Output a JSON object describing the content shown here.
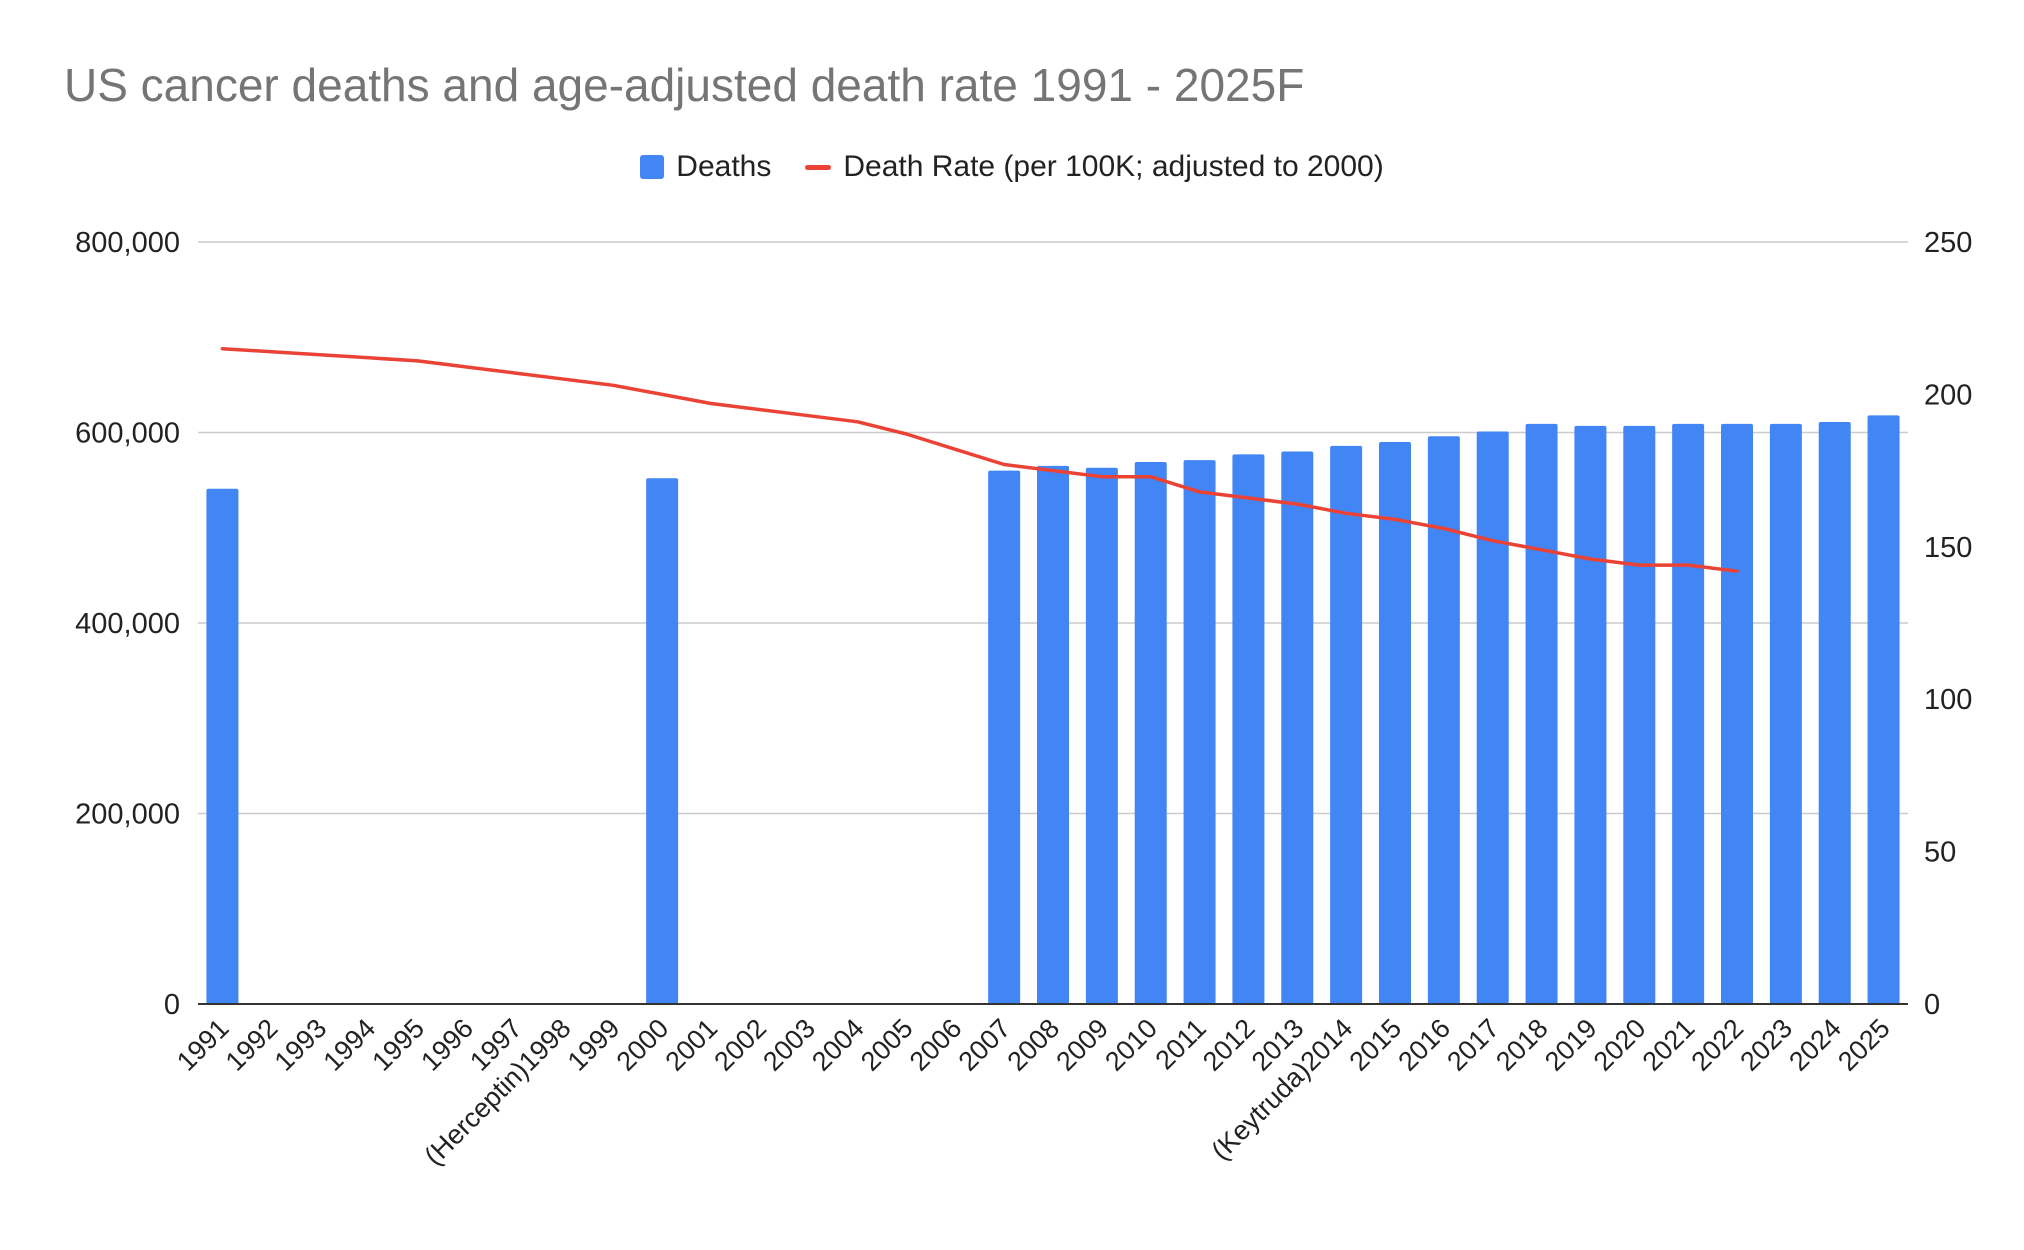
{
  "chart_data": {
    "type": "bar",
    "title": "US cancer deaths and age-adjusted death rate 1991 - 2025F",
    "categories": [
      "1991",
      "1992",
      "1993",
      "1994",
      "1995",
      "1996",
      "1997",
      "(Herceptin)1998",
      "1999",
      "2000",
      "2001",
      "2002",
      "2003",
      "2004",
      "2005",
      "2006",
      "2007",
      "2008",
      "2009",
      "2010",
      "2011",
      "2012",
      "2013",
      "(Keytruda)2014",
      "2015",
      "2016",
      "2017",
      "2018",
      "2019",
      "2020",
      "2021",
      "2022",
      "2023",
      "2024",
      "2025"
    ],
    "series": [
      {
        "name": "Deaths",
        "type": "bar",
        "axis": "left",
        "color": "#4285F4",
        "values": [
          541000,
          null,
          null,
          null,
          null,
          null,
          null,
          null,
          null,
          552000,
          null,
          null,
          null,
          null,
          null,
          null,
          560000,
          565000,
          563000,
          569000,
          571000,
          577000,
          580000,
          586000,
          590000,
          596000,
          601000,
          609000,
          607000,
          607000,
          609000,
          609000,
          609000,
          611000,
          618000
        ]
      },
      {
        "name": "Death Rate (per 100K; adjusted to 2000)",
        "type": "line",
        "axis": "right",
        "color": "#EA4335",
        "values": [
          215,
          214,
          213,
          212,
          211,
          209,
          207,
          205,
          203,
          200,
          197,
          195,
          193,
          191,
          187,
          182,
          177,
          175,
          173,
          173,
          168,
          166,
          164,
          161,
          159,
          156,
          152,
          149,
          146,
          144,
          144,
          142,
          null,
          null,
          null
        ]
      }
    ],
    "y_left": {
      "min": 0,
      "max": 800000,
      "ticks": [
        0,
        200000,
        400000,
        600000,
        800000
      ],
      "tick_labels": [
        "0",
        "200,000",
        "400,000",
        "600,000",
        "800,000"
      ]
    },
    "y_right": {
      "min": 0,
      "max": 250,
      "ticks": [
        0,
        50,
        100,
        150,
        200,
        250
      ],
      "tick_labels": [
        "0",
        "50",
        "100",
        "150",
        "200",
        "250"
      ]
    },
    "grid": true,
    "legend_position": "top-center"
  }
}
